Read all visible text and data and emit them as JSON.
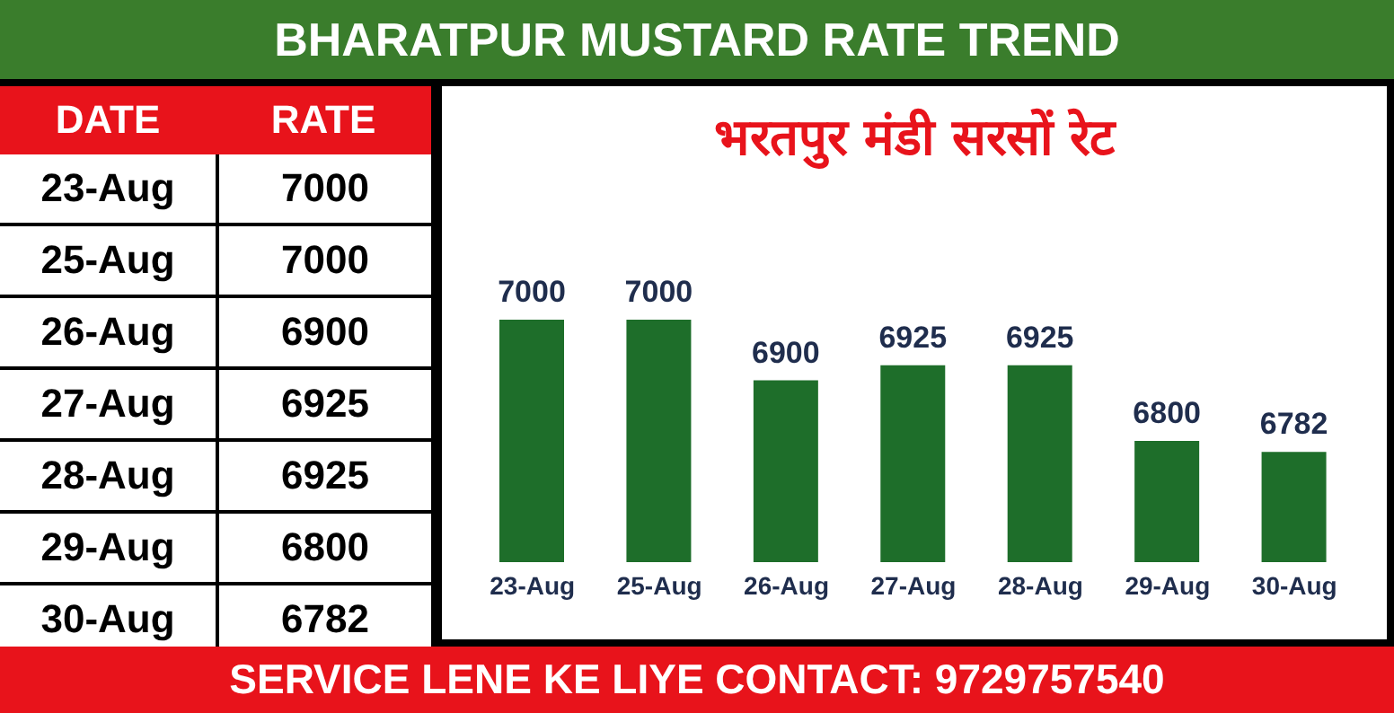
{
  "chart_data": [
    {
      "type": "other",
      "title": "BHARATPUR MUSTARD RATE TREND",
      "annotations": [
        "DATE",
        "RATE"
      ],
      "categories": [
        "23-Aug",
        "25-Aug",
        "26-Aug",
        "27-Aug",
        "28-Aug",
        "29-Aug",
        "30-Aug"
      ],
      "values": [
        7000,
        7000,
        6900,
        6925,
        6925,
        6800,
        6782
      ],
      "data_labels": true
    },
    {
      "type": "bar",
      "title": "भरतपुर मंडी सरसों रेट",
      "categories": [
        "23-Aug",
        "25-Aug",
        "26-Aug",
        "27-Aug",
        "28-Aug",
        "29-Aug",
        "30-Aug"
      ],
      "values": [
        7000,
        7000,
        6900,
        6925,
        6925,
        6800,
        6782
      ],
      "color": "#1e6e2a",
      "ylim": [
        6600,
        7000
      ],
      "data_labels": true,
      "tick_labels": "x",
      "annotations": [
        "SERVICE LENE KE LIYE CONTACT: 9729757540"
      ]
    }
  ]
}
